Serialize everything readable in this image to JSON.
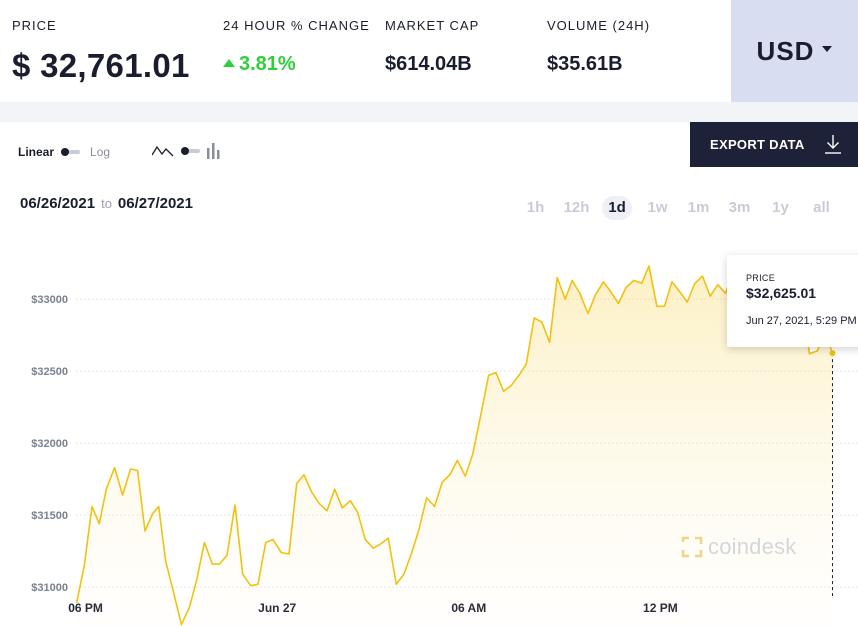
{
  "stats": {
    "price": {
      "label": "PRICE",
      "value": "$ 32,761.01"
    },
    "change": {
      "label": "24 HOUR % CHANGE",
      "value": "3.81%"
    },
    "market_cap": {
      "label": "MARKET CAP",
      "value": "$614.04B"
    },
    "volume": {
      "label": "VOLUME (24H)",
      "value": "$35.61B"
    }
  },
  "currency": {
    "selected": "USD"
  },
  "controls": {
    "scale_linear": "Linear",
    "scale_log": "Log",
    "export_label": "EXPORT DATA"
  },
  "date_range": {
    "from": "06/26/2021",
    "to_word": "to",
    "to": "06/27/2021"
  },
  "timeframes": [
    "1h",
    "12h",
    "1d",
    "1w",
    "1m",
    "3m",
    "1y",
    "all"
  ],
  "active_timeframe": "1d",
  "tooltip": {
    "label": "PRICE",
    "value": "$32,625.01",
    "time": "Jun 27, 2021, 5:29 PM"
  },
  "watermark": "coindesk",
  "colors": {
    "line": "#f2c10f",
    "accent_up": "#2fcf3c",
    "dark": "#1d2238",
    "currency_bg": "#d9ddf1"
  },
  "chart_data": {
    "type": "area",
    "y_tick_labels": [
      "$31000",
      "$31500",
      "$32000",
      "$32500",
      "$33000"
    ],
    "y_ticks": [
      31000,
      31500,
      32000,
      32500,
      33000
    ],
    "ylim": [
      30730,
      33480
    ],
    "x_tick_labels": [
      "06 PM",
      "Jun 27",
      "06 AM",
      "12 PM"
    ],
    "x_ticks": [
      18,
      24,
      30,
      36
    ],
    "xlim": [
      17.7,
      41.5
    ],
    "grid": true,
    "series": [
      {
        "x": [
          17.72,
          17.96,
          18.2,
          18.43,
          18.65,
          18.91,
          19.16,
          19.41,
          19.63,
          19.86,
          20.1,
          20.29,
          20.51,
          20.76,
          21.0,
          21.25,
          21.48,
          21.72,
          21.97,
          22.19,
          22.43,
          22.68,
          22.92,
          23.17,
          23.4,
          23.64,
          23.87,
          24.13,
          24.37,
          24.61,
          24.84,
          25.08,
          25.32,
          25.56,
          25.8,
          26.04,
          26.29,
          26.52,
          26.76,
          27.01,
          27.24,
          27.48,
          27.73,
          27.97,
          28.2,
          28.44,
          28.68,
          28.93,
          29.17,
          29.41,
          29.64,
          29.89,
          30.12,
          30.37,
          30.62,
          30.85,
          31.09,
          31.33,
          31.57,
          31.8,
          32.05,
          32.29,
          32.53,
          32.77,
          33.02,
          33.24,
          33.48,
          33.73,
          33.97,
          34.22,
          34.45,
          34.69,
          34.92,
          35.17,
          35.42,
          35.64,
          35.89,
          36.13,
          36.36,
          36.61,
          36.84,
          37.08,
          37.32,
          37.56,
          37.8,
          38.04,
          38.28,
          38.52,
          38.76,
          39.0,
          39.24,
          39.48,
          39.72,
          39.96,
          40.2,
          40.43,
          40.67,
          40.91,
          41.15,
          41.39
        ],
        "y": [
          30890,
          31150,
          31560,
          31440,
          31680,
          31830,
          31640,
          31820,
          31810,
          31390,
          31510,
          31560,
          31180,
          30960,
          30740,
          30860,
          31050,
          31310,
          31160,
          31160,
          31220,
          31570,
          31090,
          31010,
          31020,
          31310,
          31330,
          31240,
          31230,
          31720,
          31780,
          31660,
          31580,
          31530,
          31680,
          31550,
          31600,
          31520,
          31330,
          31270,
          31300,
          31340,
          31020,
          31090,
          31230,
          31400,
          31620,
          31560,
          31730,
          31780,
          31880,
          31770,
          31920,
          32190,
          32470,
          32490,
          32360,
          32400,
          32470,
          32550,
          32870,
          32840,
          32700,
          33150,
          33000,
          33130,
          33040,
          32900,
          33030,
          33120,
          33050,
          32970,
          33080,
          33130,
          33110,
          33230,
          32950,
          32950,
          33120,
          33050,
          32980,
          33110,
          33160,
          33020,
          33100,
          33040,
          33200,
          33040,
          33110,
          33000,
          32960,
          33080,
          32920,
          32850,
          32760,
          32980,
          32620,
          32640,
          32770,
          32625
        ]
      }
    ]
  }
}
